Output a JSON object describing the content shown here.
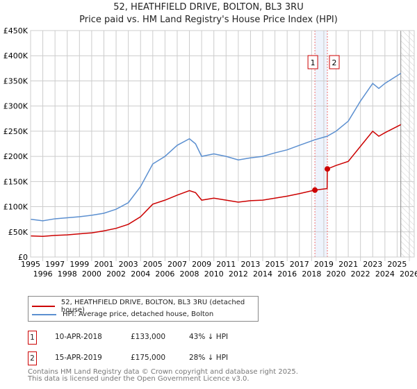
{
  "chart_data": {
    "type": "line",
    "title": "52, HEATHFIELD DRIVE, BOLTON, BL3 3RU",
    "subtitle": "Price paid vs. HM Land Registry's House Price Index (HPI)",
    "xlim": [
      1995,
      2026
    ],
    "ylim": [
      0,
      450000
    ],
    "yticks": [
      {
        "v": 0,
        "label": "£0"
      },
      {
        "v": 50000,
        "label": "£50K"
      },
      {
        "v": 100000,
        "label": "£100K"
      },
      {
        "v": 150000,
        "label": "£150K"
      },
      {
        "v": 200000,
        "label": "£200K"
      },
      {
        "v": 250000,
        "label": "£250K"
      },
      {
        "v": 300000,
        "label": "£300K"
      },
      {
        "v": 350000,
        "label": "£350K"
      },
      {
        "v": 400000,
        "label": "£400K"
      },
      {
        "v": 450000,
        "label": "£450K"
      }
    ],
    "xticks": [
      "1995",
      "1996",
      "1997",
      "1998",
      "1999",
      "2000",
      "2001",
      "2002",
      "2003",
      "2004",
      "2005",
      "2006",
      "2007",
      "2008",
      "2009",
      "2010",
      "2011",
      "2012",
      "2013",
      "2014",
      "2015",
      "2016",
      "2017",
      "2018",
      "2019",
      "2020",
      "2021",
      "2022",
      "2023",
      "2024",
      "2025",
      "2026"
    ],
    "grid": true,
    "forecast_start": 2025.3,
    "series": [
      {
        "name": "52, HEATHFIELD DRIVE, BOLTON, BL3 3RU (detached house)",
        "color": "#cc0000",
        "x": [
          1995,
          1996,
          1997,
          1998,
          1999,
          2000,
          2001,
          2002,
          2003,
          2004,
          2005,
          2006,
          2007,
          2008,
          2008.5,
          2009,
          2010,
          2011,
          2012,
          2013,
          2014,
          2015,
          2016,
          2017,
          2018.27,
          2019.27,
          2019.29,
          2020,
          2021,
          2022,
          2023,
          2023.5,
          2024,
          2025.3
        ],
        "y": [
          42000,
          41000,
          43000,
          44000,
          46000,
          48000,
          52000,
          57000,
          65000,
          80000,
          105000,
          113000,
          123000,
          132000,
          128000,
          113000,
          117000,
          113000,
          109000,
          112000,
          113000,
          117000,
          121000,
          126000,
          133000,
          136000,
          175000,
          182000,
          190000,
          220000,
          250000,
          240000,
          247000,
          263000
        ]
      },
      {
        "name": "HPI: Average price, detached house, Bolton",
        "color": "#5b8fd0",
        "x": [
          1995,
          1996,
          1997,
          1998,
          1999,
          2000,
          2001,
          2002,
          2003,
          2004,
          2005,
          2006,
          2007,
          2008,
          2008.5,
          2009,
          2010,
          2011,
          2012,
          2013,
          2014,
          2015,
          2016,
          2017,
          2018.27,
          2019.27,
          2020,
          2021,
          2022,
          2023,
          2023.5,
          2024,
          2025.3
        ],
        "y": [
          75000,
          72000,
          76000,
          78000,
          80000,
          83000,
          87000,
          95000,
          108000,
          140000,
          185000,
          200000,
          222000,
          235000,
          225000,
          200000,
          205000,
          200000,
          193000,
          197000,
          200000,
          207000,
          213000,
          222000,
          233000,
          240000,
          250000,
          270000,
          310000,
          345000,
          335000,
          345000,
          365000
        ]
      }
    ],
    "annotations": [
      {
        "label": "1",
        "x": 2018.27,
        "y": 133000,
        "date": "10-APR-2018",
        "price": "£133,000",
        "hpi": "43% ↓ HPI"
      },
      {
        "label": "2",
        "x": 2019.29,
        "y": 175000,
        "date": "15-APR-2019",
        "price": "£175,000",
        "hpi": "28% ↓ HPI"
      }
    ],
    "legend_position": "below"
  },
  "footer": {
    "line1": "Contains HM Land Registry data © Crown copyright and database right 2025.",
    "line2": "This data is licensed under the Open Government Licence v3.0."
  }
}
